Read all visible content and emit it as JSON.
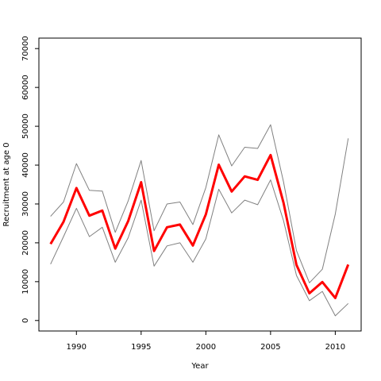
{
  "chart_data": {
    "type": "line",
    "xlabel": "Year",
    "ylabel": "Recruitment at age 0",
    "xlim": [
      1987.1,
      2012.0
    ],
    "ylim": [
      -2700,
      72700
    ],
    "x_ticks": [
      1990,
      1995,
      2000,
      2005,
      2010
    ],
    "y_ticks": [
      0,
      10000,
      20000,
      30000,
      40000,
      50000,
      60000,
      70000
    ],
    "grid": false,
    "x": [
      1988,
      1989,
      1990,
      1991,
      1992,
      1993,
      1994,
      1995,
      1996,
      1997,
      1998,
      1999,
      2000,
      2001,
      2002,
      2003,
      2004,
      2005,
      2006,
      2007,
      2008,
      2009,
      2010,
      2011
    ],
    "series": [
      {
        "color": "#808080",
        "line_style": "thin",
        "values": [
          26800,
          30500,
          40400,
          33500,
          33300,
          22700,
          30800,
          41200,
          23100,
          30000,
          30500,
          24700,
          34200,
          47800,
          39800,
          44600,
          44300,
          50400,
          35700,
          18000,
          9700,
          13200,
          27400,
          46900
        ]
      },
      {
        "color": "#ff0000",
        "line_style": "thick",
        "values": [
          19700,
          25400,
          34100,
          27000,
          28300,
          18500,
          25600,
          35600,
          17900,
          24000,
          24700,
          19300,
          27300,
          40100,
          33200,
          37100,
          36200,
          42600,
          30300,
          14300,
          7000,
          9900,
          5800,
          14400
        ]
      },
      {
        "color": "#808080",
        "line_style": "thin",
        "values": [
          14500,
          21600,
          28900,
          21600,
          24000,
          15000,
          21300,
          31000,
          14000,
          19200,
          20000,
          15000,
          21000,
          33800,
          27700,
          31000,
          29800,
          36200,
          25700,
          11600,
          5100,
          7500,
          1200,
          4400
        ]
      }
    ]
  }
}
